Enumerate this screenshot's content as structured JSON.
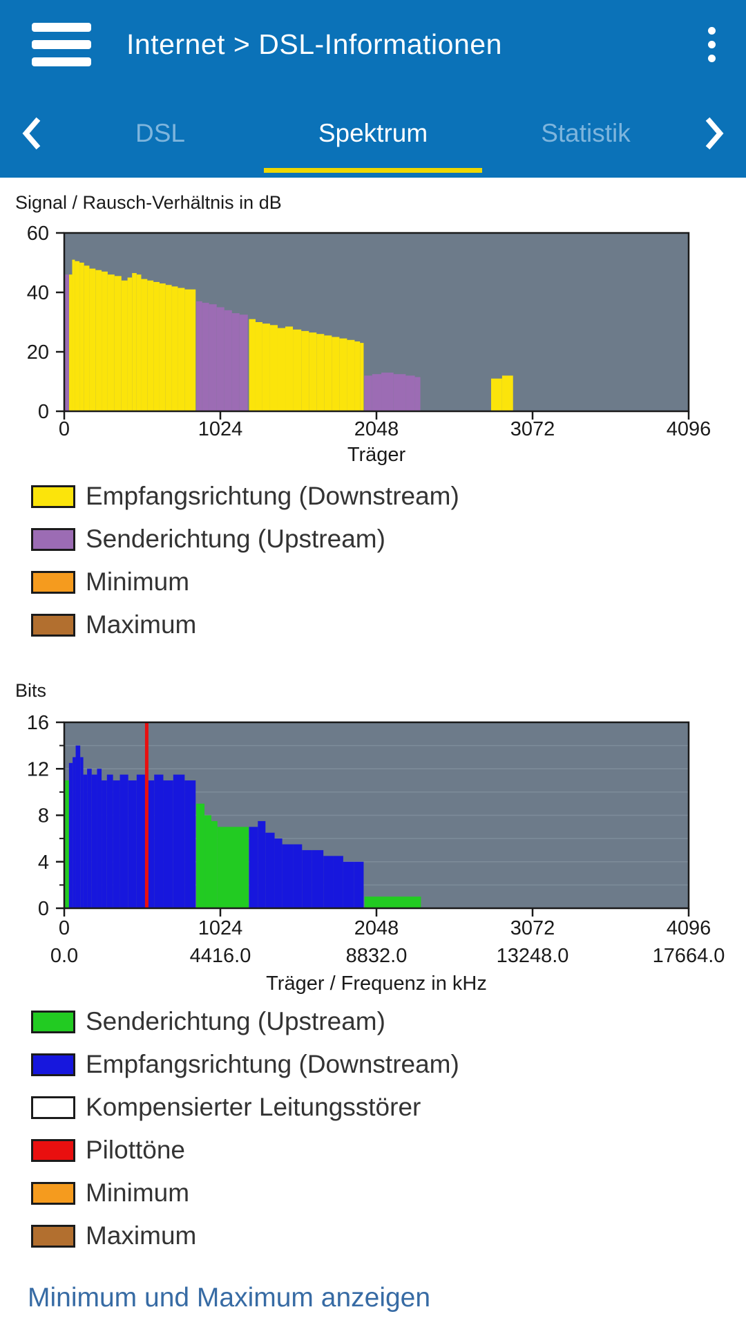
{
  "header": {
    "title": "Internet > DSL-Informationen"
  },
  "tabs": {
    "items": [
      {
        "label": "DSL",
        "active": false
      },
      {
        "label": "Spektrum",
        "active": true
      },
      {
        "label": "Statistik",
        "active": false
      }
    ]
  },
  "colors": {
    "header_bg": "#0b72b8",
    "tab_inactive_text": "#7eb5dd",
    "tab_active_text": "#ffffff",
    "tab_underline": "#eed702",
    "plot_bg": "#6d7b8a",
    "plot_grid": "#7e8c9a",
    "plot_border": "#1a1a1a",
    "link_text": "#376ba4"
  },
  "chart_data": [
    {
      "type": "bar",
      "title": "Signal / Rausch-Verhältnis in dB",
      "xlabel": "Träger",
      "xlim": [
        0,
        4096
      ],
      "ylim": [
        0,
        60
      ],
      "x_ticks": [
        0,
        1024,
        2048,
        3072,
        4096
      ],
      "y_ticks": [
        0,
        20,
        40,
        60
      ],
      "series": [
        {
          "name": "Empfangsrichtung (Downstream)",
          "color": "#fbe40b",
          "segments": [
            [
              31,
              52,
              46
            ],
            [
              52,
              70,
              51
            ],
            [
              70,
              100,
              50.5
            ],
            [
              100,
              130,
              50
            ],
            [
              130,
              165,
              49
            ],
            [
              165,
              205,
              48
            ],
            [
              205,
              245,
              47.5
            ],
            [
              245,
              285,
              47
            ],
            [
              285,
              330,
              46
            ],
            [
              330,
              375,
              45.5
            ],
            [
              375,
              415,
              44
            ],
            [
              415,
              445,
              45
            ],
            [
              445,
              475,
              46.5
            ],
            [
              475,
              505,
              46
            ],
            [
              505,
              545,
              44.5
            ],
            [
              545,
              585,
              44
            ],
            [
              585,
              625,
              43.5
            ],
            [
              625,
              665,
              43
            ],
            [
              665,
              705,
              42.5
            ],
            [
              705,
              745,
              42
            ],
            [
              745,
              790,
              41.5
            ],
            [
              790,
              862,
              41
            ],
            [
              1212,
              1255,
              31
            ],
            [
              1255,
              1300,
              30
            ],
            [
              1300,
              1350,
              29.5
            ],
            [
              1350,
              1400,
              29
            ],
            [
              1400,
              1450,
              28
            ],
            [
              1450,
              1500,
              28.5
            ],
            [
              1500,
              1555,
              27.5
            ],
            [
              1555,
              1605,
              27
            ],
            [
              1605,
              1655,
              26.5
            ],
            [
              1655,
              1705,
              26
            ],
            [
              1705,
              1755,
              25.5
            ],
            [
              1755,
              1805,
              25
            ],
            [
              1805,
              1855,
              24.5
            ],
            [
              1855,
              1905,
              24
            ],
            [
              1905,
              1940,
              23.5
            ],
            [
              1940,
              1964,
              23
            ],
            [
              2800,
              2872,
              11
            ],
            [
              2872,
              2944,
              12
            ]
          ]
        },
        {
          "name": "Senderichtung (Upstream)",
          "color": "#9c6cb4",
          "segments": [
            [
              6,
              31,
              46
            ],
            [
              866,
              905,
              37
            ],
            [
              905,
              950,
              36.5
            ],
            [
              950,
              1000,
              36
            ],
            [
              1000,
              1050,
              35
            ],
            [
              1050,
              1100,
              34
            ],
            [
              1100,
              1150,
              33
            ],
            [
              1150,
              1204,
              32.5
            ],
            [
              1968,
              2020,
              12
            ],
            [
              2020,
              2080,
              12.5
            ],
            [
              2080,
              2160,
              13
            ],
            [
              2160,
              2240,
              12.5
            ],
            [
              2240,
              2300,
              12
            ],
            [
              2300,
              2336,
              11.5
            ]
          ]
        }
      ],
      "legend": [
        {
          "label": "Empfangsrichtung (Downstream)",
          "color": "#fbe40b"
        },
        {
          "label": "Senderichtung (Upstream)",
          "color": "#9c6cb4"
        },
        {
          "label": "Minimum",
          "color": "#f59b1e"
        },
        {
          "label": "Maximum",
          "color": "#b26f2f"
        }
      ]
    },
    {
      "type": "bar",
      "title": "Bits",
      "xlabel": "Träger / Frequenz in kHz",
      "xlim": [
        0,
        4096
      ],
      "ylim": [
        0,
        16
      ],
      "x_ticks": [
        0,
        1024,
        2048,
        3072,
        4096
      ],
      "x_ticks2": [
        "0.0",
        "4416.0",
        "8832.0",
        "13248.0",
        "17664.0"
      ],
      "y_ticks": [
        0,
        4,
        8,
        12,
        16
      ],
      "y_minor_ticks": [
        2,
        6,
        10,
        14
      ],
      "grid_y_step": 2,
      "pilot_tones": {
        "color": "#e90f0f",
        "positions": [
          541
        ]
      },
      "series": [
        {
          "name": "Senderichtung (Upstream)",
          "color": "#22cb22",
          "segments": [
            [
              6,
              31,
              11
            ],
            [
              866,
              920,
              9
            ],
            [
              920,
              965,
              8
            ],
            [
              965,
              1005,
              7.5
            ],
            [
              1005,
              1210,
              7
            ],
            [
              1970,
              2340,
              1
            ]
          ]
        },
        {
          "name": "Empfangsrichtung (Downstream)",
          "color": "#1717dd",
          "segments": [
            [
              31,
              55,
              12.5
            ],
            [
              55,
              75,
              13
            ],
            [
              75,
              105,
              14
            ],
            [
              105,
              125,
              13
            ],
            [
              125,
              150,
              11.5
            ],
            [
              150,
              180,
              12
            ],
            [
              180,
              215,
              11.5
            ],
            [
              215,
              245,
              12
            ],
            [
              245,
              280,
              11
            ],
            [
              280,
              320,
              11.5
            ],
            [
              320,
              365,
              11
            ],
            [
              365,
              420,
              11.5
            ],
            [
              420,
              475,
              11
            ],
            [
              475,
              530,
              11.5
            ],
            [
              530,
              590,
              11
            ],
            [
              590,
              650,
              11.5
            ],
            [
              650,
              715,
              11
            ],
            [
              715,
              790,
              11.5
            ],
            [
              790,
              862,
              11
            ],
            [
              1212,
              1270,
              7
            ],
            [
              1270,
              1320,
              7.5
            ],
            [
              1320,
              1380,
              6.5
            ],
            [
              1380,
              1430,
              6
            ],
            [
              1430,
              1500,
              5.5
            ],
            [
              1500,
              1560,
              5.5
            ],
            [
              1560,
              1625,
              5
            ],
            [
              1625,
              1700,
              5
            ],
            [
              1700,
              1765,
              4.5
            ],
            [
              1765,
              1830,
              4.5
            ],
            [
              1830,
              1900,
              4
            ],
            [
              1900,
              1964,
              4
            ]
          ]
        }
      ],
      "legend": [
        {
          "label": "Senderichtung (Upstream)",
          "color": "#22cb22"
        },
        {
          "label": "Empfangsrichtung (Downstream)",
          "color": "#1717dd"
        },
        {
          "label": "Kompensierter Leitungsstörer",
          "color": "#ffffff"
        },
        {
          "label": "Pilottöne",
          "color": "#e90f0f"
        },
        {
          "label": "Minimum",
          "color": "#f59b1e"
        },
        {
          "label": "Maximum",
          "color": "#b26f2f"
        }
      ]
    }
  ],
  "footer": {
    "link_label": "Minimum und Maximum anzeigen"
  }
}
